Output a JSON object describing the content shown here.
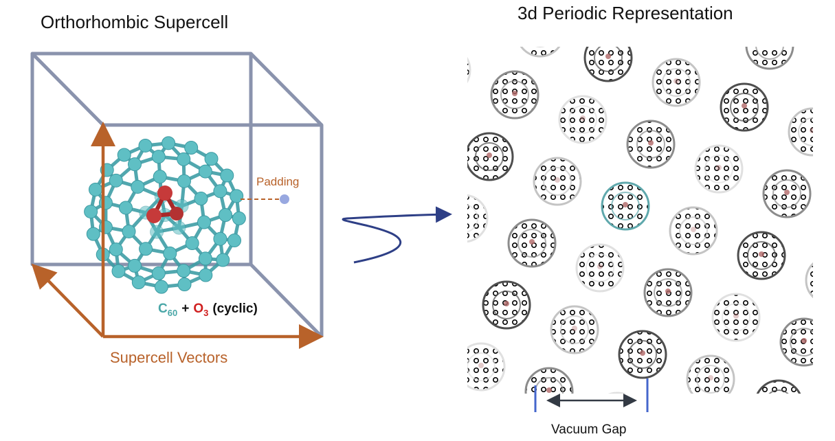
{
  "left_panel": {
    "title": "Orthorhombic Supercell",
    "padding_label": "Padding",
    "vectors_label": "Supercell Vectors",
    "formula": {
      "c_symbol": "C",
      "c_subscript": "60",
      "plus": "+",
      "o_symbol": "O",
      "o_subscript": "3",
      "suffix": "(cyclic)"
    }
  },
  "right_panel": {
    "title": "3d Periodic Representation",
    "gap_label": "Vacuum Gap"
  },
  "colors": {
    "box_edge": "#8a93ad",
    "vector": "#b8622a",
    "carbon_atom": "#5fbfc4",
    "carbon_bond": "#3f9ea6",
    "ozone_atom": "#c63a3a",
    "arrow": "#2e3f86",
    "gap_marker": "#4466cc",
    "padding_dot": "#98a8e0"
  }
}
